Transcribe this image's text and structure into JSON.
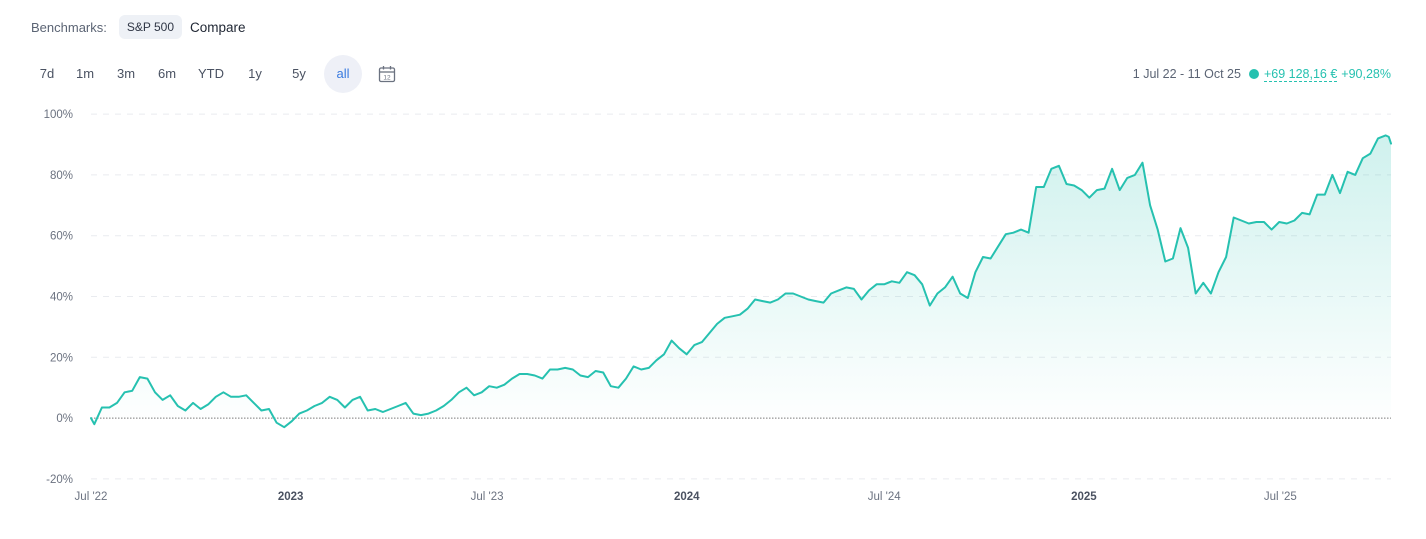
{
  "benchmarks": {
    "label": "Benchmarks:",
    "chip": "S&P 500",
    "compare": "Compare"
  },
  "ranges": [
    {
      "label": "7d",
      "active": false
    },
    {
      "label": "1m",
      "active": false
    },
    {
      "label": "3m",
      "active": false
    },
    {
      "label": "6m",
      "active": false
    },
    {
      "label": "YTD",
      "active": false
    },
    {
      "label": "1y",
      "active": false
    },
    {
      "label": "5y",
      "active": false
    },
    {
      "label": "all",
      "active": true
    }
  ],
  "calendar_icon": "calendar-icon",
  "summary": {
    "period": "1 Jul 22 - 11 Oct 25",
    "change_abs": "+69 128,16 €",
    "change_pct": "+90,28%"
  },
  "colors": {
    "line": "#26c1b0",
    "active_range": "#3a7be0",
    "zero_line": "#7a7a7a"
  },
  "chart_data": {
    "type": "area",
    "x_start": "2022-07-01",
    "x_end": "2025-10-11",
    "ylim": [
      -22,
      102
    ],
    "y_ticks": [
      {
        "value": 100,
        "label": "100%"
      },
      {
        "value": 80,
        "label": "80%"
      },
      {
        "value": 60,
        "label": "60%"
      },
      {
        "value": 40,
        "label": "40%"
      },
      {
        "value": 20,
        "label": "20%"
      },
      {
        "value": 0,
        "label": "0%"
      },
      {
        "value": -20,
        "label": "-20%"
      }
    ],
    "x_ticks": [
      {
        "date": "2022-07-01",
        "label": "Jul '22",
        "bold": false
      },
      {
        "date": "2023-01-01",
        "label": "2023",
        "bold": true
      },
      {
        "date": "2023-07-01",
        "label": "Jul '23",
        "bold": false
      },
      {
        "date": "2024-01-01",
        "label": "2024",
        "bold": true
      },
      {
        "date": "2024-07-01",
        "label": "Jul '24",
        "bold": false
      },
      {
        "date": "2025-01-01",
        "label": "2025",
        "bold": true
      },
      {
        "date": "2025-07-01",
        "label": "Jul '25",
        "bold": false
      }
    ],
    "grid": true,
    "series": [
      {
        "points": [
          [
            "2022-07-01",
            0
          ],
          [
            "2022-07-04",
            -2
          ],
          [
            "2022-07-11",
            3.5
          ],
          [
            "2022-07-18",
            3.5
          ],
          [
            "2022-07-25",
            5
          ],
          [
            "2022-08-01",
            8.5
          ],
          [
            "2022-08-08",
            9
          ],
          [
            "2022-08-15",
            13.5
          ],
          [
            "2022-08-22",
            13
          ],
          [
            "2022-08-29",
            8.5
          ],
          [
            "2022-09-05",
            6
          ],
          [
            "2022-09-12",
            7.5
          ],
          [
            "2022-09-19",
            4
          ],
          [
            "2022-09-26",
            2.5
          ],
          [
            "2022-10-03",
            5
          ],
          [
            "2022-10-10",
            3
          ],
          [
            "2022-10-17",
            4.5
          ],
          [
            "2022-10-24",
            7
          ],
          [
            "2022-10-31",
            8.5
          ],
          [
            "2022-11-07",
            7
          ],
          [
            "2022-11-14",
            7
          ],
          [
            "2022-11-21",
            7.5
          ],
          [
            "2022-11-28",
            5
          ],
          [
            "2022-12-05",
            2.5
          ],
          [
            "2022-12-12",
            3
          ],
          [
            "2022-12-19",
            -1.5
          ],
          [
            "2022-12-26",
            -3
          ],
          [
            "2023-01-02",
            -1
          ],
          [
            "2023-01-09",
            1.5
          ],
          [
            "2023-01-16",
            2.5
          ],
          [
            "2023-01-23",
            4
          ],
          [
            "2023-01-30",
            5
          ],
          [
            "2023-02-06",
            7
          ],
          [
            "2023-02-13",
            6
          ],
          [
            "2023-02-20",
            3.5
          ],
          [
            "2023-02-27",
            6
          ],
          [
            "2023-03-06",
            7
          ],
          [
            "2023-03-13",
            2.5
          ],
          [
            "2023-03-20",
            3
          ],
          [
            "2023-03-27",
            2
          ],
          [
            "2023-04-03",
            3
          ],
          [
            "2023-04-10",
            4
          ],
          [
            "2023-04-17",
            5
          ],
          [
            "2023-04-24",
            1.5
          ],
          [
            "2023-05-01",
            1
          ],
          [
            "2023-05-08",
            1.5
          ],
          [
            "2023-05-15",
            2.5
          ],
          [
            "2023-05-22",
            4
          ],
          [
            "2023-05-29",
            6
          ],
          [
            "2023-06-05",
            8.5
          ],
          [
            "2023-06-12",
            10
          ],
          [
            "2023-06-19",
            7.5
          ],
          [
            "2023-06-26",
            8.5
          ],
          [
            "2023-07-03",
            10.5
          ],
          [
            "2023-07-10",
            10
          ],
          [
            "2023-07-17",
            11
          ],
          [
            "2023-07-24",
            13
          ],
          [
            "2023-07-31",
            14.5
          ],
          [
            "2023-08-07",
            14.5
          ],
          [
            "2023-08-14",
            14
          ],
          [
            "2023-08-21",
            13
          ],
          [
            "2023-08-28",
            16
          ],
          [
            "2023-09-04",
            16
          ],
          [
            "2023-09-11",
            16.5
          ],
          [
            "2023-09-18",
            16
          ],
          [
            "2023-09-25",
            14
          ],
          [
            "2023-10-02",
            13.5
          ],
          [
            "2023-10-09",
            15.5
          ],
          [
            "2023-10-16",
            15
          ],
          [
            "2023-10-23",
            10.5
          ],
          [
            "2023-10-30",
            10
          ],
          [
            "2023-11-06",
            13
          ],
          [
            "2023-11-13",
            17
          ],
          [
            "2023-11-20",
            16
          ],
          [
            "2023-11-27",
            16.5
          ],
          [
            "2023-12-04",
            19
          ],
          [
            "2023-12-11",
            21
          ],
          [
            "2023-12-18",
            25.5
          ],
          [
            "2023-12-25",
            23
          ],
          [
            "2024-01-01",
            21
          ],
          [
            "2024-01-08",
            24
          ],
          [
            "2024-01-15",
            25
          ],
          [
            "2024-01-22",
            28
          ],
          [
            "2024-01-29",
            31
          ],
          [
            "2024-02-05",
            33
          ],
          [
            "2024-02-12",
            33.5
          ],
          [
            "2024-02-19",
            34
          ],
          [
            "2024-02-26",
            36
          ],
          [
            "2024-03-04",
            39
          ],
          [
            "2024-03-11",
            38.5
          ],
          [
            "2024-03-18",
            38
          ],
          [
            "2024-03-25",
            39
          ],
          [
            "2024-04-01",
            41
          ],
          [
            "2024-04-08",
            41
          ],
          [
            "2024-04-15",
            40
          ],
          [
            "2024-04-22",
            39
          ],
          [
            "2024-04-29",
            38.5
          ],
          [
            "2024-05-06",
            38
          ],
          [
            "2024-05-13",
            41
          ],
          [
            "2024-05-20",
            42
          ],
          [
            "2024-05-27",
            43
          ],
          [
            "2024-06-03",
            42.5
          ],
          [
            "2024-06-10",
            39
          ],
          [
            "2024-06-17",
            42
          ],
          [
            "2024-06-24",
            44
          ],
          [
            "2024-07-01",
            44
          ],
          [
            "2024-07-08",
            45
          ],
          [
            "2024-07-15",
            44.5
          ],
          [
            "2024-07-22",
            48
          ],
          [
            "2024-07-29",
            47
          ],
          [
            "2024-08-05",
            44
          ],
          [
            "2024-08-12",
            37
          ],
          [
            "2024-08-19",
            41
          ],
          [
            "2024-08-26",
            43
          ],
          [
            "2024-09-02",
            46.5
          ],
          [
            "2024-09-09",
            41
          ],
          [
            "2024-09-16",
            39.5
          ],
          [
            "2024-09-23",
            48
          ],
          [
            "2024-09-30",
            53
          ],
          [
            "2024-10-07",
            52.5
          ],
          [
            "2024-10-14",
            56.5
          ],
          [
            "2024-10-21",
            60.5
          ],
          [
            "2024-10-28",
            61
          ],
          [
            "2024-11-04",
            62
          ],
          [
            "2024-11-11",
            61
          ],
          [
            "2024-11-18",
            76
          ],
          [
            "2024-11-25",
            76
          ],
          [
            "2024-12-02",
            82
          ],
          [
            "2024-12-09",
            83
          ],
          [
            "2024-12-16",
            77
          ],
          [
            "2024-12-23",
            76.5
          ],
          [
            "2024-12-30",
            75
          ],
          [
            "2025-01-06",
            72.5
          ],
          [
            "2025-01-13",
            75
          ],
          [
            "2025-01-20",
            75.5
          ],
          [
            "2025-01-27",
            82
          ],
          [
            "2025-02-03",
            75
          ],
          [
            "2025-02-10",
            79
          ],
          [
            "2025-02-17",
            80
          ],
          [
            "2025-02-24",
            84
          ],
          [
            "2025-03-03",
            70
          ],
          [
            "2025-03-10",
            62
          ],
          [
            "2025-03-17",
            51.5
          ],
          [
            "2025-03-24",
            52.5
          ],
          [
            "2025-03-31",
            62.5
          ],
          [
            "2025-04-07",
            56
          ],
          [
            "2025-04-14",
            41
          ],
          [
            "2025-04-21",
            44.5
          ],
          [
            "2025-04-28",
            41
          ],
          [
            "2025-05-05",
            48
          ],
          [
            "2025-05-12",
            53
          ],
          [
            "2025-05-19",
            66
          ],
          [
            "2025-05-26",
            65
          ],
          [
            "2025-06-02",
            64
          ],
          [
            "2025-06-09",
            64.5
          ],
          [
            "2025-06-16",
            64.5
          ],
          [
            "2025-06-23",
            62
          ],
          [
            "2025-06-30",
            64.5
          ],
          [
            "2025-07-07",
            64
          ],
          [
            "2025-07-14",
            65
          ],
          [
            "2025-07-21",
            67.5
          ],
          [
            "2025-07-28",
            67
          ],
          [
            "2025-08-04",
            73.5
          ],
          [
            "2025-08-11",
            73.5
          ],
          [
            "2025-08-18",
            80
          ],
          [
            "2025-08-25",
            74
          ],
          [
            "2025-09-01",
            81
          ],
          [
            "2025-09-08",
            80
          ],
          [
            "2025-09-15",
            85.5
          ],
          [
            "2025-09-22",
            87
          ],
          [
            "2025-09-29",
            92
          ],
          [
            "2025-10-06",
            93
          ],
          [
            "2025-10-09",
            92.5
          ],
          [
            "2025-10-11",
            90.3
          ]
        ]
      }
    ]
  }
}
